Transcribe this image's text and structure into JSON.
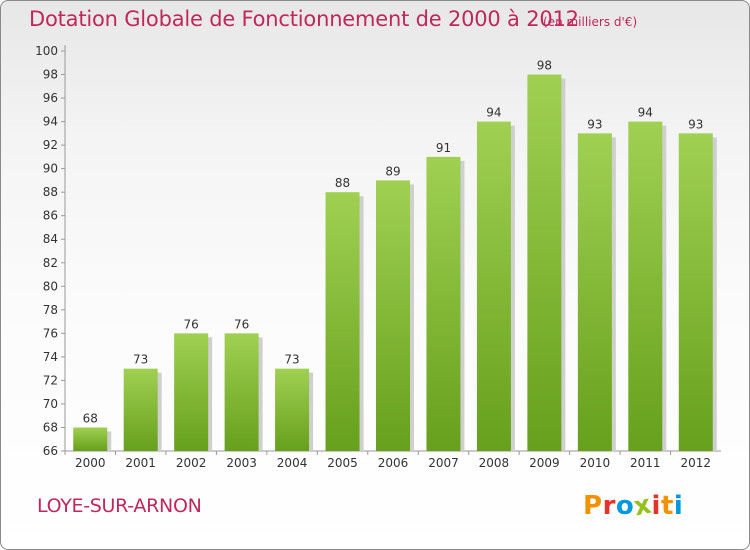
{
  "header": {
    "title": "Dotation Globale de Fonctionnement de 2000 à 2012",
    "unit": "(en milliers d'€)"
  },
  "footer": {
    "town": "LOYE-SUR-ARNON",
    "logo_letters": [
      "P",
      "r",
      "o",
      "x",
      "i",
      "t",
      "i"
    ],
    "logo_colors": [
      "#f39200",
      "#e6332a",
      "#0099dd",
      "#95c11f",
      "#e6332a",
      "#f39200",
      "#0099dd"
    ]
  },
  "colors": {
    "bar_top": "#a0d052",
    "bar_bottom": "#66a01c",
    "bar_shadow": "#cfcfcf",
    "text_accent": "#c0275c",
    "grid": "#999999"
  },
  "chart_data": {
    "type": "bar",
    "title": "Dotation Globale de Fonctionnement de 2000 à 2012",
    "subtitle": "(en milliers d'€)",
    "xlabel": "",
    "ylabel": "",
    "categories": [
      "2000",
      "2001",
      "2002",
      "2003",
      "2004",
      "2005",
      "2006",
      "2007",
      "2008",
      "2009",
      "2010",
      "2011",
      "2012"
    ],
    "values": [
      68,
      73,
      76,
      76,
      73,
      88,
      89,
      91,
      94,
      98,
      93,
      94,
      93
    ],
    "ylim": [
      66,
      100
    ],
    "yticks": [
      66,
      68,
      70,
      72,
      74,
      76,
      78,
      80,
      82,
      84,
      86,
      88,
      90,
      92,
      94,
      96,
      98,
      100
    ],
    "grid": false,
    "legend": "none"
  }
}
